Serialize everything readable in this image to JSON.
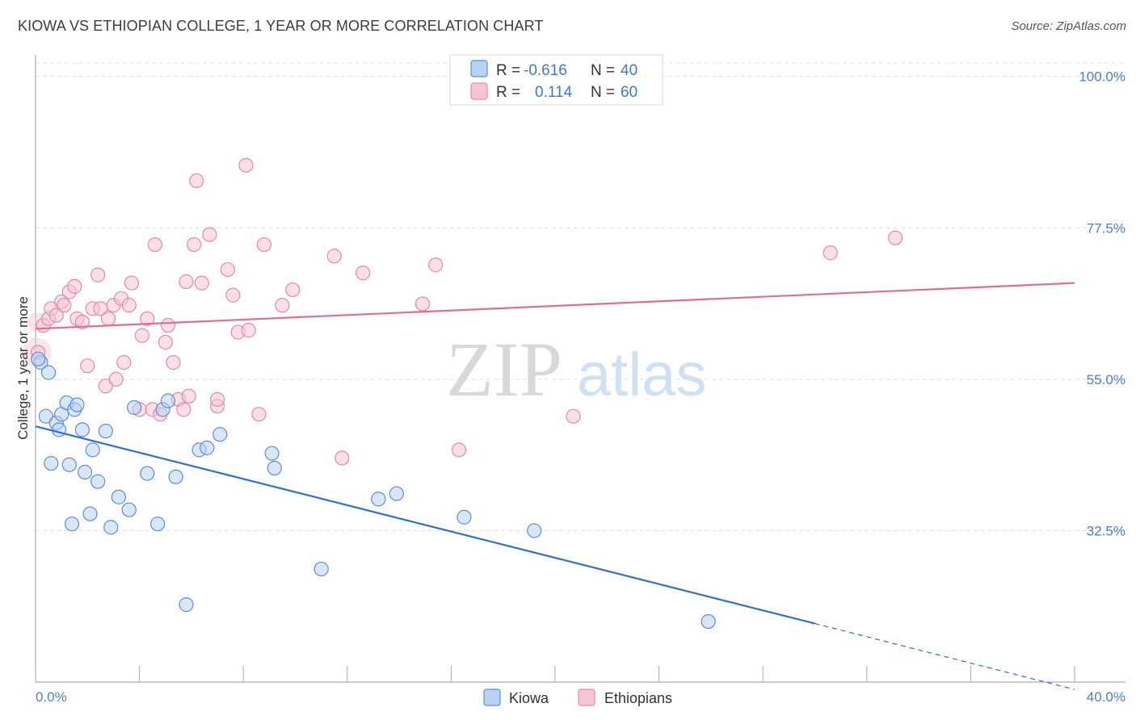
{
  "header": {
    "title": "KIOWA VS ETHIOPIAN COLLEGE, 1 YEAR OR MORE CORRELATION CHART",
    "source": "Source: ZipAtlas.com"
  },
  "watermark": {
    "zip": "ZIP",
    "atlas": "atlas"
  },
  "colors": {
    "kiowa": "#5b8fd6",
    "kiowa_fill": "#b9d2f3",
    "kiowa_line": "#2f6fd0",
    "ethiopians": "#e58aa5",
    "ethiopians_fill": "#f6c5d3",
    "ethiopians_line": "#e26c95",
    "tick": "#4a7fd0"
  },
  "stats_legend": {
    "rows": [
      {
        "r_label": "R =",
        "r_value": "-0.616",
        "n_label": "N =",
        "n_value": "40"
      },
      {
        "r_label": "R =",
        "r_value": "0.114",
        "n_label": "N =",
        "n_value": "60"
      }
    ]
  },
  "chart_data": {
    "type": "scatter",
    "title": "KIOWA VS ETHIOPIAN COLLEGE, 1 YEAR OR MORE CORRELATION CHART",
    "xlabel": "",
    "ylabel": "College, 1 year or more",
    "xlim": [
      0,
      40
    ],
    "ylim": [
      10,
      102
    ],
    "x_tick_labels": [
      "0.0%",
      "40.0%"
    ],
    "y_ticks": [
      32.5,
      55.0,
      77.5,
      100.0
    ],
    "y_tick_labels": [
      "32.5%",
      "55.0%",
      "77.5%",
      "100.0%"
    ],
    "grid": true,
    "legend_position": "bottom-center",
    "series": [
      {
        "name": "Kiowa",
        "r": -0.616,
        "n": 40,
        "trend": {
          "x0": 0,
          "y0": 48.0,
          "x1": 30.0,
          "y1": 18.7,
          "dashed_to_x": 40,
          "dashed_to_y": 8.9
        },
        "points": [
          [
            0.2,
            57.5
          ],
          [
            0.5,
            56.0
          ],
          [
            0.4,
            49.5
          ],
          [
            0.8,
            48.5
          ],
          [
            0.9,
            47.5
          ],
          [
            1.0,
            49.8
          ],
          [
            1.2,
            51.5
          ],
          [
            1.5,
            50.5
          ],
          [
            1.6,
            51.2
          ],
          [
            1.8,
            47.5
          ],
          [
            0.6,
            42.5
          ],
          [
            1.3,
            42.3
          ],
          [
            1.9,
            41.2
          ],
          [
            2.2,
            44.5
          ],
          [
            2.4,
            39.8
          ],
          [
            2.7,
            47.3
          ],
          [
            3.2,
            37.5
          ],
          [
            3.6,
            35.6
          ],
          [
            2.1,
            35.0
          ],
          [
            1.4,
            33.5
          ],
          [
            2.9,
            33.0
          ],
          [
            3.8,
            50.8
          ],
          [
            4.3,
            41.0
          ],
          [
            4.7,
            33.5
          ],
          [
            4.9,
            50.5
          ],
          [
            5.1,
            51.8
          ],
          [
            5.4,
            40.5
          ],
          [
            6.3,
            44.5
          ],
          [
            6.6,
            44.8
          ],
          [
            7.1,
            46.8
          ],
          [
            9.1,
            44.0
          ],
          [
            9.2,
            41.8
          ],
          [
            5.8,
            21.5
          ],
          [
            11.0,
            26.8
          ],
          [
            13.2,
            37.2
          ],
          [
            13.9,
            38.0
          ],
          [
            16.5,
            34.5
          ],
          [
            19.2,
            32.5
          ],
          [
            25.9,
            19.0
          ],
          [
            0.1,
            58.0
          ]
        ]
      },
      {
        "name": "Ethiopians",
        "r": 0.114,
        "n": 60,
        "trend": {
          "x0": 0,
          "y0": 62.5,
          "x1": 40,
          "y1": 69.3
        },
        "points": [
          [
            0.1,
            59.0
          ],
          [
            0.3,
            63.0
          ],
          [
            0.5,
            64.0
          ],
          [
            0.6,
            65.5
          ],
          [
            0.8,
            64.5
          ],
          [
            1.0,
            66.5
          ],
          [
            1.1,
            66.0
          ],
          [
            1.3,
            68.0
          ],
          [
            1.5,
            68.8
          ],
          [
            1.6,
            64.0
          ],
          [
            1.8,
            63.5
          ],
          [
            2.0,
            57.0
          ],
          [
            2.2,
            65.5
          ],
          [
            2.4,
            70.5
          ],
          [
            2.5,
            65.5
          ],
          [
            2.7,
            54.0
          ],
          [
            2.8,
            64.0
          ],
          [
            3.0,
            66.0
          ],
          [
            3.1,
            55.0
          ],
          [
            3.3,
            67.0
          ],
          [
            3.4,
            57.5
          ],
          [
            3.6,
            66.0
          ],
          [
            3.7,
            69.3
          ],
          [
            4.0,
            50.5
          ],
          [
            4.1,
            61.5
          ],
          [
            4.3,
            64.0
          ],
          [
            4.5,
            50.5
          ],
          [
            4.6,
            75.0
          ],
          [
            4.8,
            49.8
          ],
          [
            5.0,
            60.5
          ],
          [
            5.1,
            63.0
          ],
          [
            5.3,
            57.5
          ],
          [
            5.5,
            52.0
          ],
          [
            5.7,
            50.5
          ],
          [
            5.8,
            69.5
          ],
          [
            5.9,
            52.5
          ],
          [
            6.1,
            75.0
          ],
          [
            6.2,
            84.5
          ],
          [
            6.4,
            69.3
          ],
          [
            6.7,
            76.5
          ],
          [
            7.0,
            51.0
          ],
          [
            7.0,
            52.0
          ],
          [
            7.4,
            71.3
          ],
          [
            7.6,
            67.5
          ],
          [
            7.8,
            62.0
          ],
          [
            8.1,
            86.8
          ],
          [
            8.2,
            62.3
          ],
          [
            8.6,
            49.8
          ],
          [
            8.8,
            75.0
          ],
          [
            9.5,
            66.0
          ],
          [
            9.9,
            68.3
          ],
          [
            11.5,
            73.3
          ],
          [
            11.8,
            43.3
          ],
          [
            12.6,
            70.8
          ],
          [
            14.9,
            66.2
          ],
          [
            15.4,
            72.0
          ],
          [
            16.3,
            44.5
          ],
          [
            20.7,
            49.5
          ],
          [
            30.6,
            73.8
          ],
          [
            33.1,
            76.0
          ]
        ]
      }
    ]
  },
  "bottom_legend": {
    "items": [
      {
        "label": "Kiowa"
      },
      {
        "label": "Ethiopians"
      }
    ]
  }
}
